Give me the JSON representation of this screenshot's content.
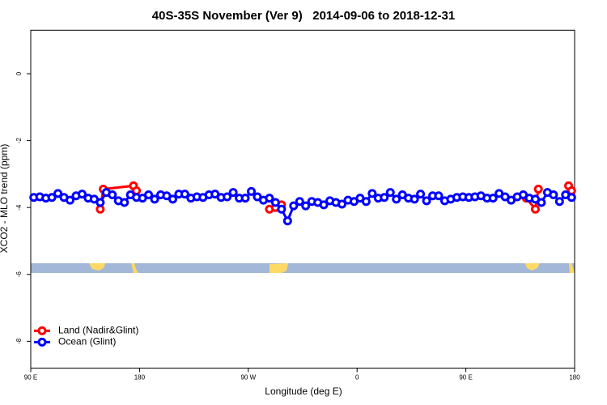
{
  "chart_data": {
    "type": "line",
    "title": "40S-35S November (Ver 9)   2014-09-06 to 2018-12-31",
    "x_label": "Longitude (deg E)",
    "y_label": "XCO2 - MLO trend (ppm)",
    "xlim": [
      90,
      540
    ],
    "xticks": [
      {
        "value": 90,
        "label": "90 E"
      },
      180,
      {
        "value": 270,
        "label": "90 W"
      },
      {
        "value": 360,
        "label": "0"
      },
      {
        "value": 450,
        "label": "90 E"
      },
      {
        "value": 540,
        "label": "180"
      }
    ],
    "ylim": [
      -8.8,
      1.3
    ],
    "yticks": [
      0,
      -2,
      -4,
      -6,
      -8
    ],
    "legend": "bottomleft",
    "series": [
      {
        "name": "Land (Nadir&Glint)",
        "color": "#ff0000",
        "x": [
          147.5,
          150,
          175,
          177.5,
          null,
          287.5,
          292.5,
          297.5,
          null,
          500,
          507.5,
          510,
          null,
          535,
          537.5
        ],
        "values": [
          -4.05,
          -3.45,
          -3.35,
          -3.5,
          null,
          -4.05,
          -4.0,
          -3.92,
          null,
          -3.72,
          -4.05,
          -3.45,
          null,
          -3.35,
          -3.5
        ]
      },
      {
        "name": "Ocean (Glint)",
        "color": "#0000ff",
        "x": [
          92.5,
          97.5,
          102.5,
          107.5,
          112.5,
          117.5,
          122.5,
          127.5,
          132.5,
          137.5,
          142.5,
          147.5,
          152.5,
          157.5,
          162.5,
          167.5,
          172.5,
          177.5,
          182.5,
          187.5,
          192.5,
          197.5,
          202.5,
          207.5,
          212.5,
          217.5,
          222.5,
          227.5,
          232.5,
          237.5,
          242.5,
          247.5,
          252.5,
          257.5,
          262.5,
          267.5,
          272.5,
          277.5,
          282.5,
          287.5,
          292.5,
          297.5,
          302.5,
          307.5,
          312.5,
          317.5,
          322.5,
          327.5,
          332.5,
          337.5,
          342.5,
          347.5,
          352.5,
          357.5,
          362.5,
          367.5,
          372.5,
          377.5,
          382.5,
          387.5,
          392.5,
          397.5,
          402.5,
          407.5,
          412.5,
          417.5,
          422.5,
          427.5,
          432.5,
          437.5,
          442.5,
          447.5,
          452.5,
          457.5,
          462.5,
          467.5,
          472.5,
          477.5,
          482.5,
          487.5,
          492.5,
          497.5,
          502.5,
          507.5,
          512.5,
          517.5,
          522.5,
          527.5,
          532.5,
          537.5
        ],
        "values": [
          -3.7,
          -3.68,
          -3.72,
          -3.7,
          -3.58,
          -3.7,
          -3.78,
          -3.65,
          -3.6,
          -3.72,
          -3.75,
          -3.85,
          -3.55,
          -3.62,
          -3.8,
          -3.85,
          -3.62,
          -3.7,
          -3.72,
          -3.62,
          -3.75,
          -3.62,
          -3.65,
          -3.75,
          -3.6,
          -3.6,
          -3.72,
          -3.68,
          -3.7,
          -3.62,
          -3.6,
          -3.7,
          -3.68,
          -3.55,
          -3.72,
          -3.72,
          -3.52,
          -3.68,
          -3.78,
          -3.72,
          -3.85,
          -4.05,
          -4.4,
          -3.95,
          -3.82,
          -3.95,
          -3.82,
          -3.85,
          -3.92,
          -3.8,
          -3.85,
          -3.9,
          -3.78,
          -3.82,
          -3.72,
          -3.82,
          -3.58,
          -3.72,
          -3.7,
          -3.55,
          -3.75,
          -3.62,
          -3.72,
          -3.75,
          -3.6,
          -3.8,
          -3.65,
          -3.65,
          -3.8,
          -3.75,
          -3.7,
          -3.68,
          -3.7,
          -3.68,
          -3.65,
          -3.72,
          -3.72,
          -3.58,
          -3.68,
          -3.78,
          -3.68,
          -3.62,
          -3.72,
          -3.75,
          -3.85,
          -3.55,
          -3.62,
          -3.82,
          -3.62,
          -3.7
        ]
      }
    ]
  }
}
